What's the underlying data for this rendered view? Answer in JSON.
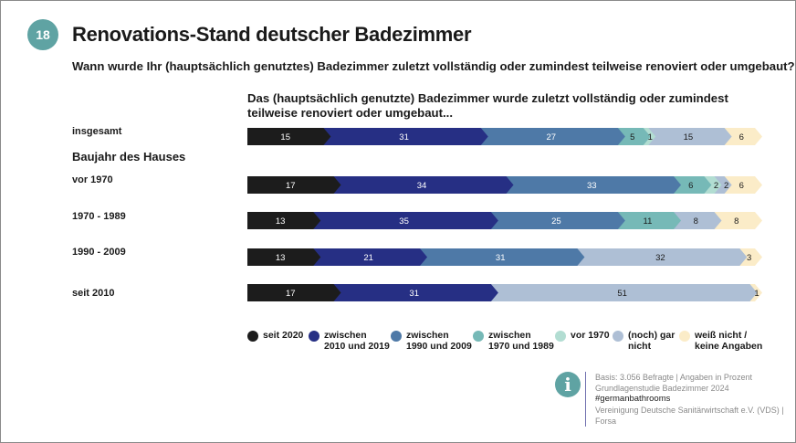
{
  "page_number": "18",
  "title": "Renovations-Stand deutscher Badezimmer",
  "question": "Wann wurde Ihr (hauptsächlich genutztes) Badezimmer zuletzt vollständig oder zumindest teilweise renoviert oder umgebaut?",
  "group_label": "Baujahr des Hauses",
  "source": {
    "line1": "Basis: 3.056 Befragte | Angaben in Prozent",
    "line2": "Grundlagenstudie Badezimmer 2024",
    "hashtag": "#germanbathrooms",
    "line4": "Vereinigung Deutsche Sanitärwirtschaft e.V. (VDS) |",
    "line5": "Forsa"
  },
  "chart_data": {
    "type": "bar",
    "orientation": "horizontal",
    "stacked": true,
    "title": "Das (hauptsächlich genutzte) Badezimmer wurde zuletzt vollständig oder zumindest teilweise renoviert oder umgebaut...",
    "xlim": [
      0,
      100
    ],
    "unit": "Prozent",
    "categories": [
      "insgesamt",
      "vor 1970",
      "1970 - 1989",
      "1990 - 2009",
      "seit 2010"
    ],
    "series": [
      {
        "name": "seit 2020",
        "color": "#1c1c1c",
        "label_color": "#ffffff",
        "values": [
          15,
          17,
          13,
          13,
          17
        ]
      },
      {
        "name": "zwischen\n2010 und 2019",
        "color": "#262f84",
        "label_color": "#ffffff",
        "values": [
          31,
          34,
          35,
          21,
          31
        ]
      },
      {
        "name": "zwischen\n1990 und 2009",
        "color": "#4e79a7",
        "label_color": "#ffffff",
        "values": [
          27,
          33,
          25,
          31,
          null
        ]
      },
      {
        "name": "zwischen\n1970 und 1989",
        "color": "#76b9b7",
        "label_color": "#1a1a1a",
        "values": [
          5,
          6,
          11,
          null,
          null
        ]
      },
      {
        "name": "vor 1970",
        "color": "#b2ddd2",
        "label_color": "#1a1a1a",
        "values": [
          1,
          2,
          null,
          null,
          null
        ]
      },
      {
        "name": "(noch) gar\nnicht",
        "color": "#aebfd5",
        "label_color": "#1a1a1a",
        "values": [
          15,
          2,
          8,
          32,
          51
        ]
      },
      {
        "name": "weiß nicht /\nkeine Angaben",
        "color": "#fbecc8",
        "label_color": "#1a1a1a",
        "values": [
          6,
          6,
          8,
          3,
          1
        ]
      }
    ]
  }
}
